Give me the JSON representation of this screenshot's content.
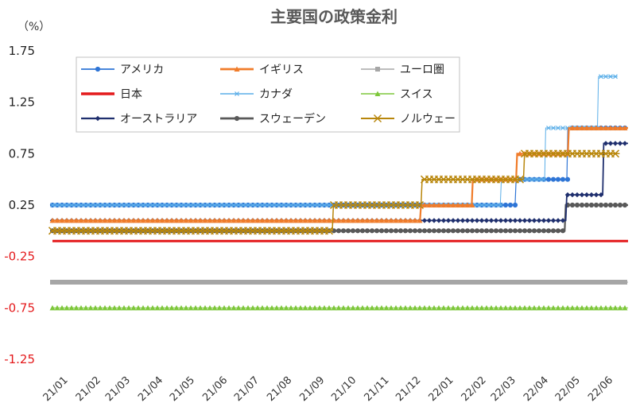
{
  "chart_data": {
    "type": "line",
    "title": "主要国の政策金利",
    "unit_label": "（%）",
    "y_ticks": [
      "1.75",
      "1.25",
      "0.75",
      "0.25",
      "-0.25",
      "-0.75",
      "-1.25"
    ],
    "y_tick_values": [
      1.75,
      1.25,
      0.75,
      0.25,
      -0.25,
      -0.75,
      -1.25
    ],
    "ylim": [
      -1.25,
      1.75
    ],
    "x_tick_labels": [
      "21/01",
      "21/02",
      "21/03",
      "21/04",
      "21/05",
      "21/06",
      "21/07",
      "21/08",
      "21/09",
      "21/10",
      "21/11",
      "21/12",
      "22/01",
      "22/02",
      "22/03",
      "22/04",
      "22/05",
      "22/06"
    ],
    "x_range": [
      "2021-01-01",
      "2022-06-30"
    ],
    "grid": false,
    "legend": "top-left",
    "series": [
      {
        "name": "アメリカ",
        "color": "#2e75d6",
        "marker": "circle",
        "width": 1.2,
        "points": [
          [
            "2021-01-01",
            0.25
          ],
          [
            "2022-03-15",
            0.25
          ],
          [
            "2022-03-16",
            0.5
          ],
          [
            "2022-05-03",
            0.5
          ],
          [
            "2022-05-04",
            1.0
          ],
          [
            "2022-06-30",
            1.0
          ]
        ]
      },
      {
        "name": "イギリス",
        "color": "#f07c2a",
        "marker": "triangle",
        "width": 2.2,
        "points": [
          [
            "2021-01-01",
            0.1
          ],
          [
            "2021-12-15",
            0.1
          ],
          [
            "2021-12-16",
            0.25
          ],
          [
            "2022-02-02",
            0.25
          ],
          [
            "2022-02-03",
            0.5
          ],
          [
            "2022-03-16",
            0.5
          ],
          [
            "2022-03-17",
            0.75
          ],
          [
            "2022-05-04",
            0.75
          ],
          [
            "2022-05-05",
            1.0
          ],
          [
            "2022-06-30",
            1.0
          ]
        ]
      },
      {
        "name": "ユーロ圏",
        "color": "#a6a6a6",
        "marker": "square",
        "width": 1,
        "points": [
          [
            "2021-01-01",
            -0.5
          ],
          [
            "2022-06-30",
            -0.5
          ]
        ]
      },
      {
        "name": "日本",
        "color": "#e41a1c",
        "marker": "none",
        "width": 3,
        "points": [
          [
            "2021-01-01",
            -0.1
          ],
          [
            "2022-06-30",
            -0.1
          ]
        ]
      },
      {
        "name": "カナダ",
        "color": "#5aaee8",
        "marker": "x",
        "width": 1,
        "points": [
          [
            "2021-01-01",
            0.25
          ],
          [
            "2022-03-01",
            0.25
          ],
          [
            "2022-03-02",
            0.5
          ],
          [
            "2022-04-12",
            0.5
          ],
          [
            "2022-04-13",
            1.0
          ],
          [
            "2022-06-01",
            1.0
          ],
          [
            "2022-06-02",
            1.5
          ],
          [
            "2022-06-20",
            1.5
          ]
        ]
      },
      {
        "name": "スイス",
        "color": "#7dc73a",
        "marker": "triangle",
        "width": 1,
        "points": [
          [
            "2021-01-01",
            -0.75
          ],
          [
            "2022-06-30",
            -0.75
          ]
        ]
      },
      {
        "name": "オーストラリア",
        "color": "#1f2f6e",
        "marker": "diamond",
        "width": 1.8,
        "points": [
          [
            "2021-01-01",
            0.1
          ],
          [
            "2022-05-02",
            0.1
          ],
          [
            "2022-05-03",
            0.35
          ],
          [
            "2022-06-06",
            0.35
          ],
          [
            "2022-06-07",
            0.85
          ],
          [
            "2022-06-30",
            0.85
          ]
        ]
      },
      {
        "name": "スウェーデン",
        "color": "#595959",
        "marker": "circle",
        "width": 2.2,
        "points": [
          [
            "2021-01-01",
            0.0
          ],
          [
            "2022-05-01",
            0.0
          ],
          [
            "2022-05-02",
            0.25
          ],
          [
            "2022-06-30",
            0.25
          ]
        ]
      },
      {
        "name": "ノルウェー",
        "color": "#b8860b",
        "marker": "xbig",
        "width": 1.5,
        "points": [
          [
            "2021-01-01",
            0.0
          ],
          [
            "2021-09-23",
            0.0
          ],
          [
            "2021-09-24",
            0.25
          ],
          [
            "2021-12-16",
            0.25
          ],
          [
            "2021-12-17",
            0.5
          ],
          [
            "2022-03-23",
            0.5
          ],
          [
            "2022-03-24",
            0.75
          ],
          [
            "2022-06-22",
            0.75
          ]
        ]
      }
    ]
  }
}
